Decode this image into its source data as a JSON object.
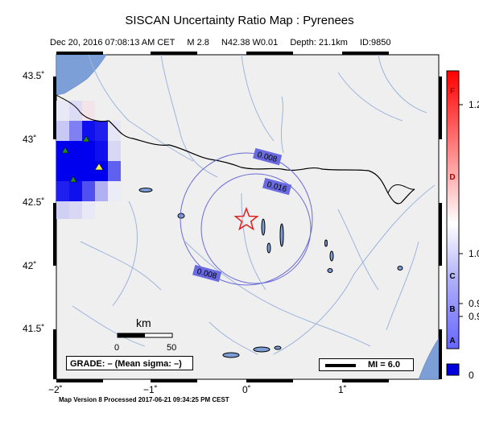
{
  "title": "SISCAN Uncertainty Ratio Map : Pyrenees",
  "subtitle": {
    "datetime": "Dec 20, 2016 07:08:13 AM CET",
    "magnitude": "M 2.8",
    "location": "N42.38 W0.01",
    "depth": "Depth: 21.1km",
    "event_id": "ID:9850"
  },
  "lat_labels": [
    "43.5˚",
    "43˚",
    "42.5˚",
    "42˚",
    "41.5˚"
  ],
  "lon_labels": [
    "−2˚",
    "−1˚",
    "0˚",
    "1˚"
  ],
  "contours": [
    {
      "label": "0.008",
      "label_2": "0.008"
    },
    {
      "label": "0.016"
    }
  ],
  "scale_bar": {
    "title": "km",
    "start": "0",
    "end": "50"
  },
  "grade_text": "GRADE: – (Mean sigma: –)",
  "mi_legend": "MI = 6.0",
  "colorbar": {
    "letters": [
      "F",
      "D",
      "C",
      "B",
      "A"
    ],
    "values": [
      "1.2",
      "1.0",
      "0.9",
      "0.9",
      "0"
    ],
    "colors": {
      "top": "#ff0000",
      "mid": "#ffffff",
      "low": "#6666ff",
      "min": "#0000dd"
    }
  },
  "footer": "Map Version 8 Processed 2017-06-21 09:34:25 PM CEST",
  "colors": {
    "land": "#efefef",
    "sea": "#7b9fd6",
    "river": "#9db5dc",
    "border": "#000000",
    "contour": "#6a6ad8",
    "contour_label_bg": "#6a6ae0",
    "epicenter": "#e02020",
    "station_green": "#1e8c1e",
    "station_yellow": "#f0f050",
    "grid_high": "#0000ee",
    "grid_mid": "#6060f0",
    "grid_low": "#c8c8f4"
  },
  "map_extent": {
    "lon": [
      -2.0,
      2.0
    ],
    "lat": [
      41.1,
      43.65
    ]
  }
}
